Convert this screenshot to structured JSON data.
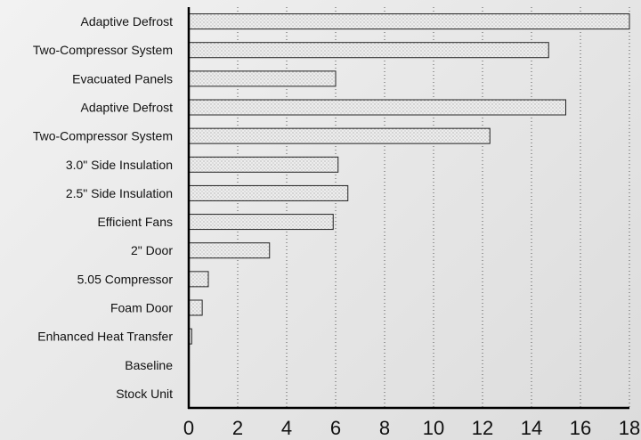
{
  "chart_data": {
    "type": "bar",
    "orientation": "horizontal",
    "title": "",
    "xlabel": "",
    "ylabel": "",
    "xlim": [
      0,
      18
    ],
    "xticks": [
      0,
      2,
      4,
      6,
      8,
      10,
      12,
      14,
      16,
      18
    ],
    "grid": "vertical dotted",
    "categories": [
      "Adaptive Defrost",
      "Two-Compressor System",
      "Evacuated Panels",
      "Adaptive Defrost",
      "Two-Compressor System",
      "3.0\" Side Insulation",
      "2.5\" Side Insulation",
      "Efficient Fans",
      "2\" Door",
      "5.05 Compressor",
      "Foam Door",
      "Enhanced Heat Transfer",
      "Baseline",
      "Stock Unit"
    ],
    "values": [
      18.0,
      14.7,
      6.0,
      15.4,
      12.3,
      6.1,
      6.5,
      5.9,
      3.3,
      0.8,
      0.55,
      0.12,
      0,
      0
    ],
    "bar_fill": "#e9e9e9",
    "bar_stroke": "#222222"
  }
}
